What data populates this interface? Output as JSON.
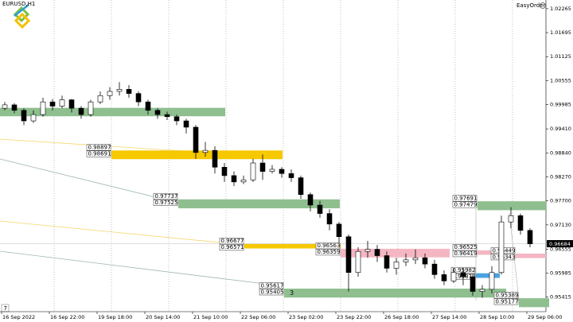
{
  "chart_data": {
    "type": "candlestick",
    "title": "EURUSD,H1",
    "categories": [
      "16 Sep 2022",
      null,
      null,
      null,
      null,
      "16 Sep 22:00",
      null,
      null,
      null,
      null,
      "19 Sep 18:00",
      null,
      null,
      null,
      null,
      "20 Sep 14:00",
      null,
      null,
      null,
      null,
      "21 Sep 10:00",
      null,
      null,
      null,
      null,
      "22 Sep 06:00",
      null,
      null,
      null,
      null,
      "23 Sep 02:00",
      null,
      null,
      null,
      null,
      "23 Sep 22:00",
      null,
      null,
      null,
      null,
      "26 Sep 18:00",
      null,
      null,
      null,
      null,
      "27 Sep 14:00",
      null,
      null,
      null,
      null,
      "28 Sep 10:00",
      null,
      null,
      null,
      null,
      "29 Sep 06:00"
    ],
    "open": [
      0.999,
      0.9998,
      0.9985,
      0.996,
      0.9975,
      1.0005,
      0.9995,
      1.001,
      0.999,
      0.9975,
      1.0005,
      1.002,
      1.003,
      1.0035,
      1.0025,
      1.0005,
      0.9985,
      0.9975,
      0.997,
      0.996,
      0.9945,
      0.9885,
      0.989,
      0.985,
      0.983,
      0.9815,
      0.982,
      0.986,
      0.984,
      0.9845,
      0.9835,
      0.9825,
      0.9785,
      0.976,
      0.974,
      0.9715,
      0.9685,
      0.96,
      0.965,
      0.9655,
      0.964,
      0.961,
      0.9625,
      0.963,
      0.9635,
      0.962,
      0.9595,
      0.958,
      0.96,
      0.959,
      0.9555,
      0.956,
      0.96,
      0.972,
      0.9735,
      0.97
    ],
    "high": [
      1.0005,
      1.0002,
      0.999,
      0.9985,
      1.0015,
      1.0012,
      1.002,
      1.0012,
      0.9995,
      1.001,
      1.003,
      1.004,
      1.0052,
      1.0045,
      1.003,
      1.001,
      0.999,
      0.9982,
      0.9975,
      0.9965,
      0.995,
      0.991,
      0.99,
      0.986,
      0.984,
      0.983,
      0.987,
      0.988,
      0.9855,
      0.985,
      0.9845,
      0.983,
      0.979,
      0.977,
      0.975,
      0.972,
      0.969,
      0.966,
      0.9675,
      0.9665,
      0.965,
      0.9635,
      0.9645,
      0.9655,
      0.9645,
      0.963,
      0.9605,
      0.961,
      0.961,
      0.9595,
      0.957,
      0.9615,
      0.9735,
      0.9755,
      0.974,
      0.9705
    ],
    "low": [
      0.9985,
      0.9978,
      0.995,
      0.9955,
      0.997,
      0.9985,
      0.999,
      0.998,
      0.9965,
      0.997,
      1.0,
      1.001,
      1.002,
      1.0015,
      0.9995,
      0.9975,
      0.9965,
      0.9962,
      0.995,
      0.993,
      0.987,
      0.9875,
      0.9835,
      0.9815,
      0.9805,
      0.981,
      0.9815,
      0.982,
      0.9835,
      0.9825,
      0.9815,
      0.9775,
      0.9745,
      0.973,
      0.97,
      0.967,
      0.9555,
      0.959,
      0.9635,
      0.9625,
      0.96,
      0.9595,
      0.9615,
      0.962,
      0.961,
      0.9585,
      0.957,
      0.9575,
      0.957,
      0.9545,
      0.954,
      0.955,
      0.9595,
      0.9705,
      0.969,
      0.966
    ],
    "close": [
      0.9998,
      0.9985,
      0.996,
      0.9975,
      1.0005,
      0.9995,
      1.001,
      0.999,
      0.9975,
      1.0005,
      1.002,
      1.003,
      1.0035,
      1.0025,
      1.0005,
      0.9985,
      0.9975,
      0.997,
      0.996,
      0.9945,
      0.9885,
      0.989,
      0.985,
      0.983,
      0.9815,
      0.982,
      0.986,
      0.984,
      0.9845,
      0.9835,
      0.9825,
      0.9785,
      0.976,
      0.974,
      0.9715,
      0.9685,
      0.96,
      0.965,
      0.9655,
      0.964,
      0.961,
      0.9625,
      0.963,
      0.9635,
      0.962,
      0.9595,
      0.958,
      0.96,
      0.959,
      0.9555,
      0.956,
      0.96,
      0.972,
      0.9735,
      0.97,
      0.9668
    ],
    "up_color": "#ffffff",
    "down_color": "#000000",
    "ylim": [
      0.9507,
      1.0247
    ],
    "yticks": [
      1.02265,
      1.01695,
      1.01125,
      1.00555,
      0.99985,
      {
        "value": 0.9941,
        "label": "0.99410"
      },
      {
        "value": 0.9884,
        "label": "0.98840"
      },
      {
        "value": 0.9827,
        "label": "0.98270"
      },
      {
        "value": 0.977,
        "label": "0.97700"
      },
      {
        "value": 0.9713,
        "label": "0.97130"
      },
      0.96555,
      0.95985,
      0.95415
    ],
    "last_price": 0.96684,
    "bands": [
      {
        "color": "#8fbf8f",
        "prices": [
          0.9991,
          0.9971
        ]
      }
    ],
    "zones": [
      {
        "color": "#f5c800",
        "prices": [
          0.98897,
          0.98691
        ]
      },
      {
        "color": "#8fbf8f",
        "prices": [
          0.97737,
          0.97525
        ]
      },
      {
        "color": "#f5c800",
        "prices": [
          0.96677,
          0.96571
        ]
      },
      {
        "color": "#f4b6c2",
        "prices": [
          0.96563,
          0.96359
        ]
      },
      {
        "color": "#8fbf8f",
        "prices": [
          0.95617,
          0.95405
        ],
        "text": "3"
      },
      {
        "color": "#8fbf8f",
        "prices": [
          0.97691,
          0.97479
        ]
      },
      {
        "color": "#f4b6c2",
        "prices": [
          0.96525,
          0.96419
        ]
      },
      {
        "color": "#f4b6c2",
        "prices": [
          0.96449,
          0.96343
        ]
      },
      {
        "color": "#8fbf8f",
        "prices": [
          0.95389,
          0.95177
        ]
      },
      {
        "color": "#4aa3df",
        "prices": [
          0.95982,
          0.95872
        ]
      }
    ]
  },
  "toolbar": {
    "plugin": "EasyOrder",
    "corner_number": "7"
  }
}
